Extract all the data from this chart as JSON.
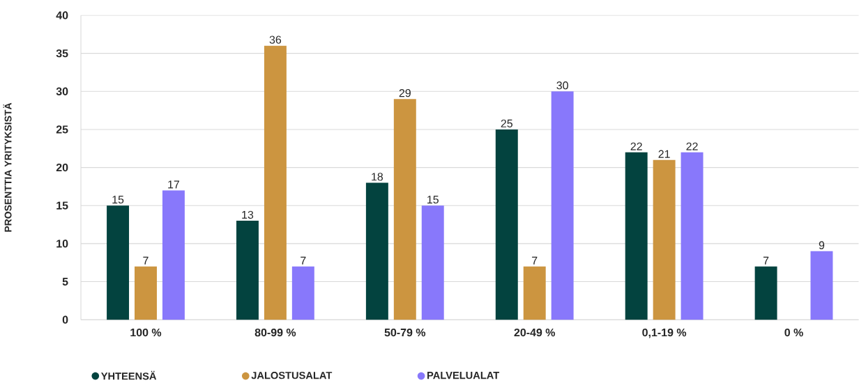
{
  "chart_data": {
    "type": "bar",
    "ylabel": "PROSENTTIA YRITYKSISTÄ",
    "categories": [
      "100 %",
      "80-99 %",
      "50-79 %",
      "20-49 %",
      "0,1-19 %",
      "0 %"
    ],
    "series": [
      {
        "name": "YHTEENSÄ",
        "color": "#03433f",
        "values": [
          15,
          13,
          18,
          25,
          22,
          7
        ]
      },
      {
        "name": "JALOSTUSALAT",
        "color": "#cc9540",
        "values": [
          7,
          36,
          29,
          7,
          21,
          null
        ]
      },
      {
        "name": "PALVELUALAT",
        "color": "#8878fb",
        "values": [
          17,
          7,
          15,
          30,
          22,
          9
        ]
      }
    ],
    "ylim": [
      0,
      40
    ],
    "yticks": [
      0,
      5,
      10,
      15,
      20,
      25,
      30,
      35,
      40
    ],
    "grid": "y",
    "legend": "bottom",
    "data_labels": true
  }
}
